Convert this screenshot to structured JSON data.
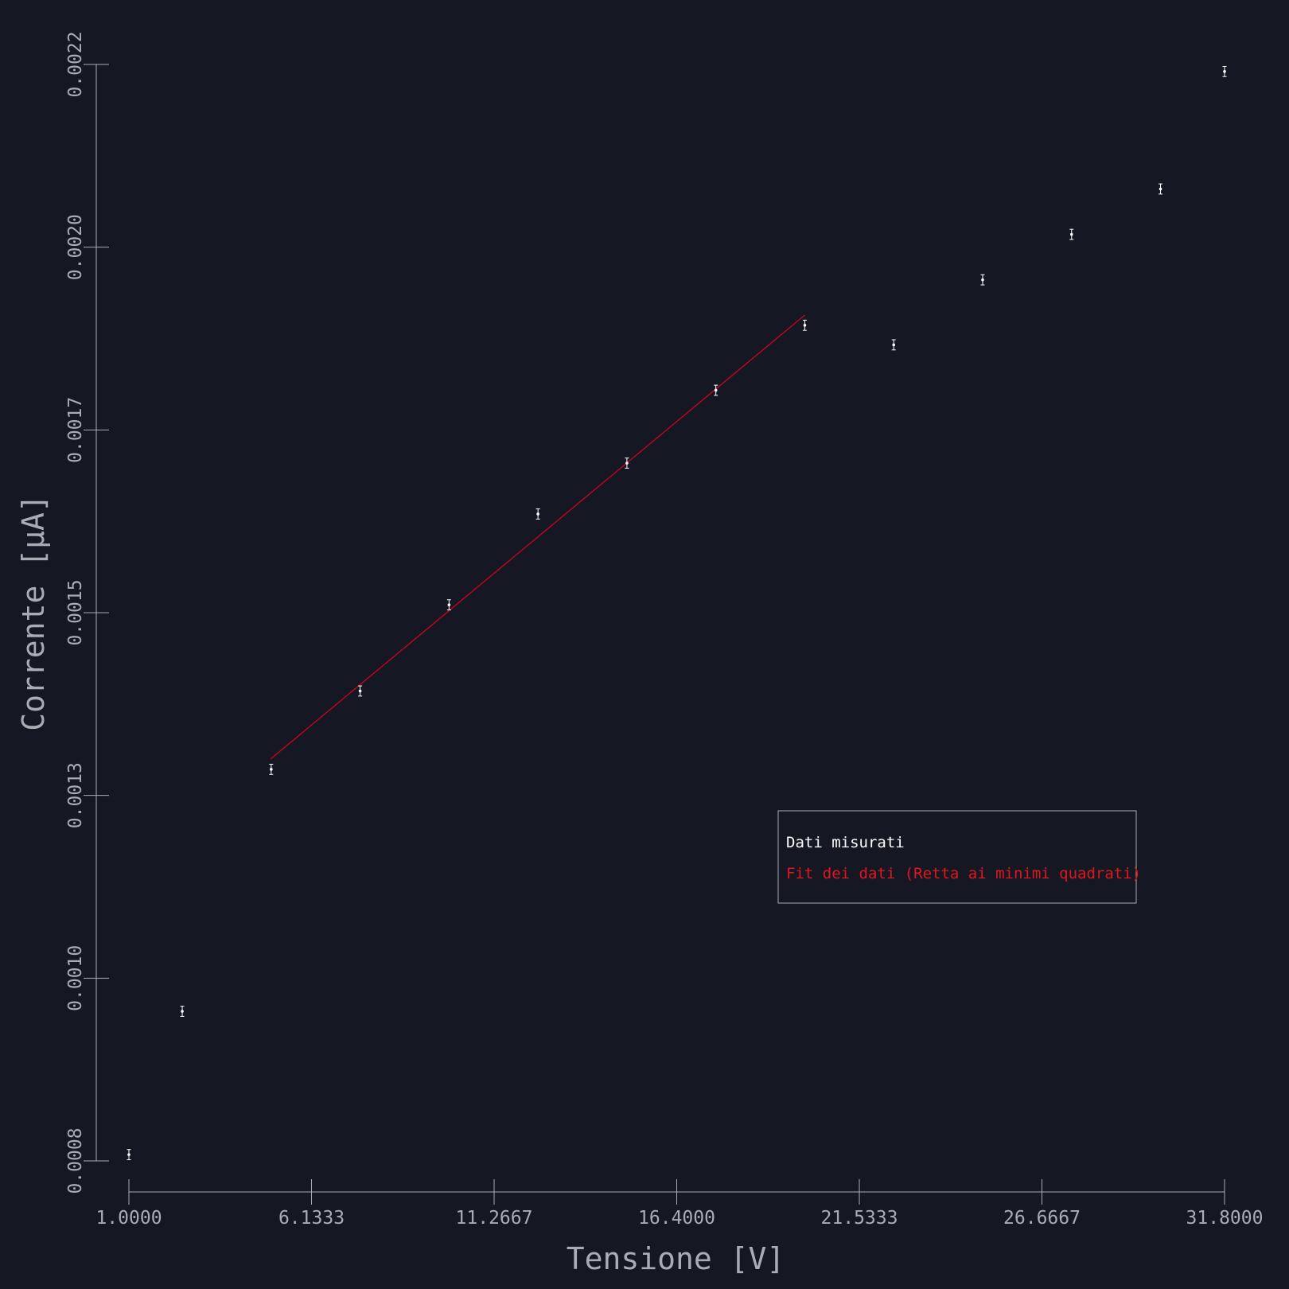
{
  "chart_data": {
    "type": "scatter",
    "xlabel": "Tensione [V]",
    "ylabel": "Corrente [μA]",
    "xlim": [
      1.0,
      31.8
    ],
    "ylim": [
      0.0008,
      0.0022
    ],
    "x_ticks": [
      "1.0000",
      "6.1333",
      "11.2667",
      "16.4000",
      "21.5333",
      "26.6667",
      "31.8000"
    ],
    "y_ticks": [
      "0.0008",
      "0.0010",
      "0.0013",
      "0.0015",
      "0.0017",
      "0.0020",
      "0.0022"
    ],
    "legend": {
      "placement": "lower-right",
      "entries": [
        "Dati misurati",
        "Fit dei dati (Retta ai minimi quadrati)"
      ]
    },
    "series": [
      {
        "name": "Dati misurati",
        "kind": "scatter-errorbar",
        "color": "#ffffff",
        "x": [
          1.0,
          2.5,
          5.0,
          7.5,
          10.0,
          12.5,
          15.0,
          17.5,
          20.0,
          22.5,
          25.0,
          27.5,
          30.0,
          31.8
        ],
        "y": [
          0.000808,
          0.000991,
          0.0013,
          0.0014,
          0.00151,
          0.001626,
          0.001691,
          0.001784,
          0.001867,
          0.001842,
          0.001925,
          0.001983,
          0.002041,
          0.002191
        ],
        "yerr": 6.5e-06
      },
      {
        "name": "Fit dei dati (Retta ai minimi quadrati)",
        "kind": "line",
        "color": "#d0021b",
        "x": [
          4.98,
          20.0
        ],
        "y": [
          0.001313,
          0.00188
        ]
      }
    ]
  }
}
